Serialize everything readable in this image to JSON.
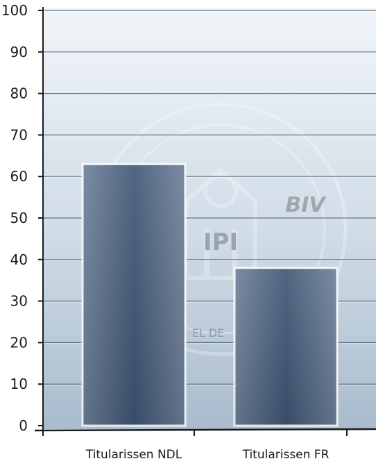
{
  "chart_data": {
    "type": "bar",
    "categories": [
      "Titularissen NDL",
      "Titularissen FR"
    ],
    "values": [
      63,
      38
    ],
    "ylim": [
      0,
      100
    ],
    "yticks": [
      0,
      10,
      20,
      30,
      40,
      50,
      60,
      70,
      80,
      90,
      100
    ],
    "ytick_labels": [
      "0",
      "10",
      "20",
      "30",
      "40",
      "50",
      "60",
      "70",
      "80",
      "90",
      "100"
    ],
    "grid": true,
    "legend": "none",
    "colors": {
      "bar_dark": "#3f5573",
      "bar_light": "#6d8099",
      "bar_edge": "#f4f6f8",
      "plot_bg_top": "#f1f5f9",
      "plot_bg_bottom": "#a9bbcd",
      "grid": "#4a5d74",
      "axis": "#1a1a1a",
      "watermark": "#ffffff"
    },
    "watermark_text": [
      "BIV",
      "IPI",
      "EL DE"
    ]
  }
}
